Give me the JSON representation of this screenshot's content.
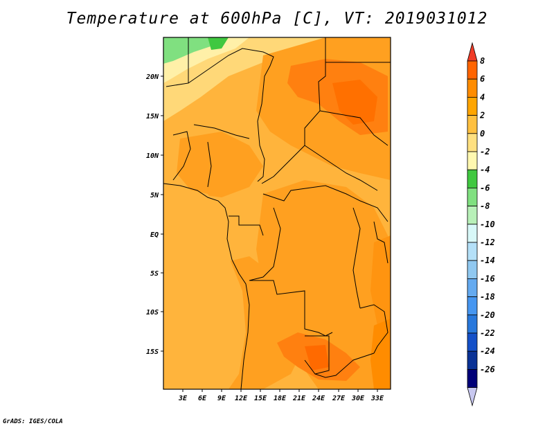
{
  "title": "Temperature at 600hPa [C], VT: 2019031012",
  "credit": "GrADS: IGES/COLA",
  "map": {
    "lat_ticks": [
      "20N",
      "15N",
      "10N",
      "5N",
      "EQ",
      "5S",
      "10S",
      "15S"
    ],
    "lon_ticks": [
      "3E",
      "6E",
      "9E",
      "12E",
      "15E",
      "18E",
      "21E",
      "24E",
      "27E",
      "30E",
      "33E"
    ]
  },
  "colorbar": {
    "labels": [
      "8",
      "6",
      "4",
      "2",
      "0",
      "-2",
      "-4",
      "-6",
      "-8",
      "-10",
      "-12",
      "-14",
      "-16",
      "-18",
      "-20",
      "-22",
      "-24",
      "-26"
    ],
    "colors": [
      "#f03c28",
      "#ff6400",
      "#ff8c00",
      "#ffa500",
      "#ffc040",
      "#ffe080",
      "#fff8b0",
      "#40c840",
      "#80e080",
      "#b8f0b8",
      "#d8f8f8",
      "#b4e0f8",
      "#90c8f0",
      "#64aaf0",
      "#4696f0",
      "#2878dc",
      "#1450c8",
      "#0a3296",
      "#000078",
      "#c8c8f0"
    ]
  }
}
